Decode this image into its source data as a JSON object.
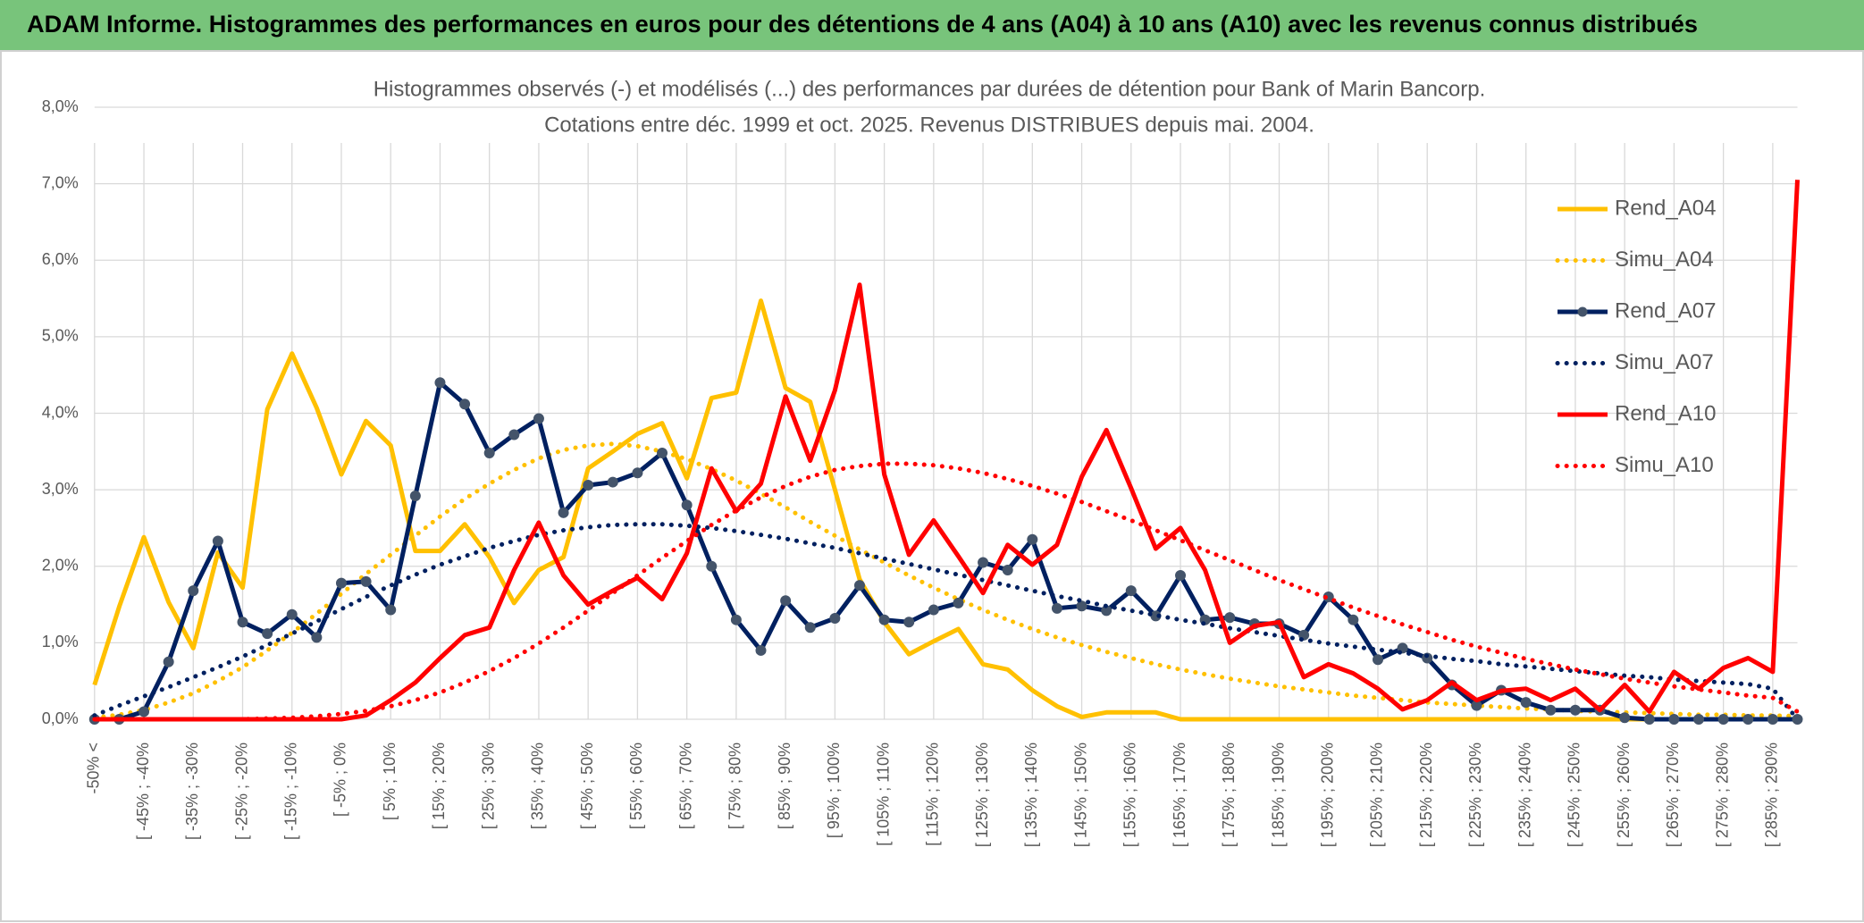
{
  "header": {
    "title": "ADAM Informe. Histogrammes des performances en euros pour des détentions de 4 ans (A04) à 10 ans (A10) avec les revenus connus distribués"
  },
  "chart_data": {
    "type": "line",
    "title": "Histogrammes observés (-) et modélisés (...) des performances par durées de détention pour Bank of Marin Bancorp.",
    "subtitle": "Cotations entre déc. 1999 et oct. 2025. Revenus DISTRIBUES depuis mai. 2004.",
    "categories": [
      "-50% <",
      null,
      "[ -45% ; -40%",
      null,
      "[ -35% ; -30%",
      null,
      "[ -25% ; -20%",
      null,
      "[ -15% ; -10%",
      null,
      "[ -5% ; 0%",
      null,
      "[ 5% ; 10%",
      null,
      "[ 15% ; 20%",
      null,
      "[ 25% ; 30%",
      null,
      "[ 35% ; 40%",
      null,
      "[ 45% ; 50%",
      null,
      "[ 55% ; 60%",
      null,
      "[ 65% ; 70%",
      null,
      "[ 75% ; 80%",
      null,
      "[ 85% ; 90%",
      null,
      "[ 95% ; 100%",
      null,
      "[ 105% ; 110%",
      null,
      "[ 115% ; 120%",
      null,
      "[ 125% ; 130%",
      null,
      "[ 135% ; 140%",
      null,
      "[ 145% ; 150%",
      null,
      "[ 155% ; 160%",
      null,
      "[ 165% ; 170%",
      null,
      "[ 175% ; 180%",
      null,
      "[ 185% ; 190%",
      null,
      "[ 195% ; 200%",
      null,
      "[ 205% ; 210%",
      null,
      "[ 215% ; 220%",
      null,
      "[ 225% ; 230%",
      null,
      "[ 235% ; 240%",
      null,
      "[ 245% ; 250%",
      null,
      "[ 255% ; 260%",
      null,
      "[ 265% ; 270%",
      null,
      "[ 275% ; 280%",
      null,
      "[ 285% ; 290%",
      null
    ],
    "ylim": [
      0,
      8
    ],
    "yticks": [
      {
        "value": 0,
        "label": "0,0%"
      },
      {
        "value": 1,
        "label": "1,0%"
      },
      {
        "value": 2,
        "label": "2,0%"
      },
      {
        "value": 3,
        "label": "3,0%"
      },
      {
        "value": 4,
        "label": "4,0%"
      },
      {
        "value": 5,
        "label": "5,0%"
      },
      {
        "value": 6,
        "label": "6,0%"
      },
      {
        "value": 7,
        "label": "7,0%"
      },
      {
        "value": 8,
        "label": "8,0%"
      }
    ],
    "grid": true,
    "legend": "right",
    "series": [
      {
        "name": "Rend_A04",
        "color": "#ffc000",
        "line_style": "solid",
        "marker": false,
        "values": [
          0.45,
          1.47,
          2.38,
          1.53,
          0.93,
          2.18,
          1.72,
          4.05,
          4.78,
          4.07,
          3.2,
          3.9,
          3.58,
          2.2,
          2.2,
          2.55,
          2.12,
          1.52,
          1.95,
          2.12,
          3.28,
          3.5,
          3.73,
          3.87,
          3.15,
          4.2,
          4.27,
          5.47,
          4.33,
          4.15,
          3.0,
          1.83,
          1.27,
          0.85,
          1.02,
          1.18,
          0.72,
          0.65,
          0.38,
          0.17,
          0.03,
          0.09,
          0.09,
          0.09,
          0,
          0,
          0,
          0,
          0,
          0,
          0,
          0,
          0,
          0,
          0,
          0,
          0,
          0,
          0,
          0,
          0,
          0,
          0,
          0,
          0,
          0,
          0,
          0,
          0,
          0
        ]
      },
      {
        "name": "Simu_A04",
        "color": "#ffc000",
        "line_style": "dotted",
        "marker": false,
        "values": [
          0.02,
          0.06,
          0.12,
          0.22,
          0.34,
          0.5,
          0.68,
          0.9,
          1.13,
          1.38,
          1.64,
          1.9,
          2.15,
          2.4,
          2.65,
          2.88,
          3.08,
          3.26,
          3.41,
          3.52,
          3.58,
          3.6,
          3.57,
          3.5,
          3.4,
          3.27,
          3.12,
          2.95,
          2.77,
          2.58,
          2.4,
          2.22,
          2.05,
          1.88,
          1.72,
          1.57,
          1.43,
          1.3,
          1.18,
          1.07,
          0.97,
          0.88,
          0.8,
          0.72,
          0.65,
          0.59,
          0.53,
          0.48,
          0.43,
          0.39,
          0.35,
          0.31,
          0.28,
          0.25,
          0.22,
          0.2,
          0.18,
          0.16,
          0.14,
          0.13,
          0.11,
          0.1,
          0.09,
          0.08,
          0.07,
          0.06,
          0.06,
          0.05,
          0.05,
          0.04
        ]
      },
      {
        "name": "Rend_A07",
        "color": "#002060",
        "line_style": "solid",
        "marker": true,
        "values": [
          0,
          0,
          0.1,
          0.75,
          1.68,
          2.33,
          1.27,
          1.12,
          1.37,
          1.07,
          1.78,
          1.8,
          1.43,
          2.92,
          4.4,
          4.12,
          3.48,
          3.72,
          3.93,
          2.7,
          3.06,
          3.1,
          3.22,
          3.48,
          2.8,
          2.0,
          1.3,
          0.9,
          1.55,
          1.2,
          1.32,
          1.75,
          1.3,
          1.27,
          1.43,
          1.52,
          2.05,
          1.95,
          2.35,
          1.45,
          1.48,
          1.42,
          1.68,
          1.35,
          1.88,
          1.3,
          1.33,
          1.25,
          1.25,
          1.1,
          1.6,
          1.3,
          0.78,
          0.93,
          0.8,
          0.45,
          0.18,
          0.38,
          0.22,
          0.12,
          0.12,
          0.12,
          0.02,
          0,
          0,
          0,
          0,
          0,
          0,
          0
        ]
      },
      {
        "name": "Simu_A07",
        "color": "#002060",
        "line_style": "dotted",
        "marker": false,
        "values": [
          0.05,
          0.18,
          0.3,
          0.42,
          0.55,
          0.68,
          0.82,
          0.97,
          1.12,
          1.28,
          1.44,
          1.6,
          1.75,
          1.89,
          2.02,
          2.13,
          2.24,
          2.33,
          2.41,
          2.47,
          2.51,
          2.54,
          2.55,
          2.55,
          2.53,
          2.5,
          2.46,
          2.41,
          2.36,
          2.3,
          2.24,
          2.17,
          2.1,
          2.03,
          1.96,
          1.89,
          1.82,
          1.75,
          1.68,
          1.61,
          1.55,
          1.48,
          1.42,
          1.36,
          1.3,
          1.25,
          1.19,
          1.14,
          1.09,
          1.04,
          0.99,
          0.95,
          0.91,
          0.87,
          0.83,
          0.79,
          0.76,
          0.72,
          0.69,
          0.66,
          0.63,
          0.6,
          0.57,
          0.55,
          0.52,
          0.5,
          0.48,
          0.46,
          0.4,
          0.0
        ]
      },
      {
        "name": "Rend_A10",
        "color": "#ff0000",
        "line_style": "solid",
        "marker": false,
        "values": [
          0,
          0,
          0,
          0,
          0,
          0,
          0,
          0,
          0,
          0,
          0,
          0.05,
          0.25,
          0.48,
          0.8,
          1.1,
          1.2,
          1.95,
          2.57,
          1.88,
          1.5,
          1.68,
          1.85,
          1.57,
          2.17,
          3.28,
          2.72,
          3.08,
          4.22,
          3.38,
          4.3,
          5.68,
          3.2,
          2.15,
          2.6,
          2.13,
          1.65,
          2.28,
          2.02,
          2.28,
          3.17,
          3.78,
          3.02,
          2.23,
          2.5,
          1.95,
          1.0,
          1.22,
          1.27,
          0.55,
          0.72,
          0.6,
          0.4,
          0.13,
          0.25,
          0.48,
          0.25,
          0.37,
          0.4,
          0.25,
          0.4,
          0.12,
          0.45,
          0.1,
          0.62,
          0.4,
          0.67,
          0.8,
          0.62,
          7.05
        ]
      },
      {
        "name": "Simu_A10",
        "color": "#ff0000",
        "line_style": "dotted",
        "marker": false,
        "values": [
          0,
          0,
          0,
          0,
          0,
          0,
          0,
          0.01,
          0.02,
          0.04,
          0.07,
          0.11,
          0.17,
          0.25,
          0.35,
          0.48,
          0.63,
          0.8,
          0.99,
          1.2,
          1.42,
          1.65,
          1.88,
          2.11,
          2.33,
          2.54,
          2.73,
          2.9,
          3.05,
          3.17,
          3.26,
          3.31,
          3.34,
          3.34,
          3.32,
          3.28,
          3.22,
          3.14,
          3.05,
          2.95,
          2.84,
          2.72,
          2.6,
          2.47,
          2.34,
          2.21,
          2.08,
          1.95,
          1.82,
          1.7,
          1.58,
          1.46,
          1.35,
          1.24,
          1.14,
          1.04,
          0.95,
          0.87,
          0.79,
          0.72,
          0.65,
          0.59,
          0.53,
          0.48,
          0.43,
          0.39,
          0.35,
          0.31,
          0.28,
          0.1
        ]
      }
    ]
  }
}
